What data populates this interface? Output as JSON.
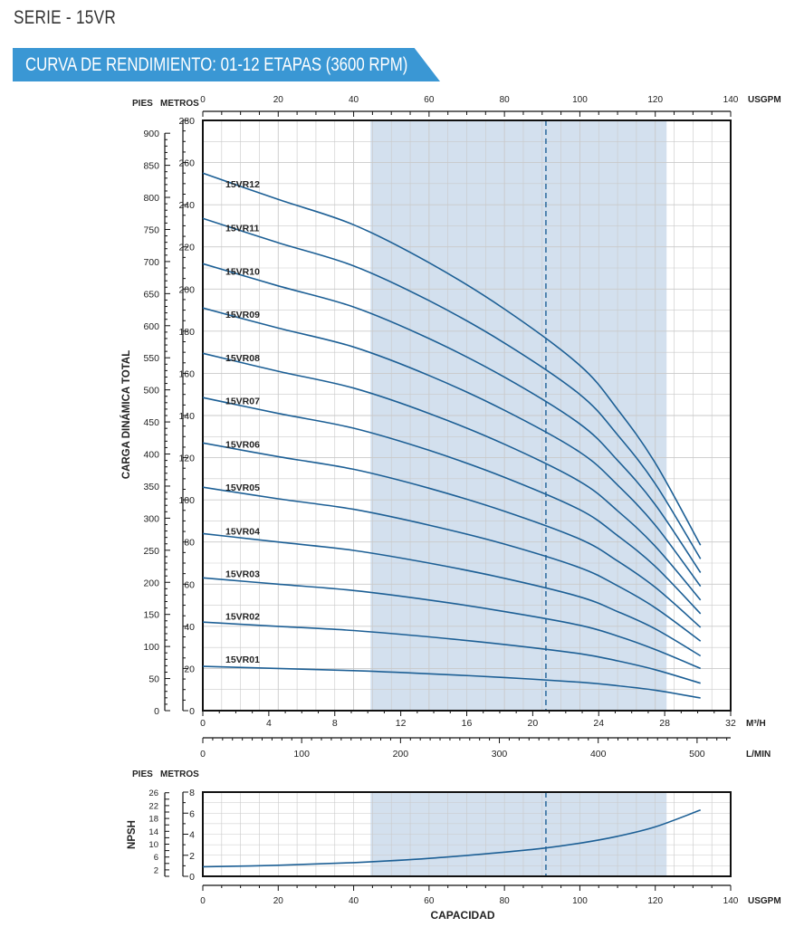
{
  "header": {
    "series": "SERIE - 15VR",
    "banner": "CURVA DE RENDIMIENTO: 01-12 ETAPAS (3600 RPM)"
  },
  "colors": {
    "banner": "#3a97d4",
    "curve": "#1c5f95",
    "shade": "#d3e0ee",
    "grid": "#c9c9c9"
  },
  "chart_data": [
    {
      "type": "line",
      "name": "performance",
      "ylabel": "CARGA DINÁMICA TOTAL",
      "unit_labels": {
        "pies": "PIES",
        "metros": "METROS",
        "usgpm": "USGPM",
        "m3h": "M³/H",
        "lmin": "L/MIN"
      },
      "x_usgpm": {
        "range": [
          0,
          140
        ],
        "ticks": [
          0,
          20,
          40,
          60,
          80,
          100,
          120,
          140
        ]
      },
      "x_m3h": {
        "range": [
          0,
          32
        ],
        "ticks": [
          0,
          4,
          8,
          12,
          16,
          20,
          24,
          28,
          32
        ]
      },
      "x_lmin": {
        "range": [
          0,
          534
        ],
        "ticks": [
          0,
          100,
          200,
          300,
          400,
          500
        ]
      },
      "y_metros": {
        "range": [
          0,
          280
        ],
        "ticks": [
          0,
          20,
          40,
          60,
          80,
          100,
          120,
          140,
          160,
          180,
          200,
          220,
          240,
          260,
          280
        ]
      },
      "y_pies": {
        "range": [
          0,
          920
        ],
        "ticks": [
          0,
          50,
          100,
          150,
          200,
          250,
          300,
          350,
          400,
          450,
          500,
          550,
          600,
          650,
          700,
          750,
          800,
          850,
          900
        ]
      },
      "shaded_range_usgpm": [
        44.5,
        123
      ],
      "best_efficiency_usgpm": 91,
      "x": [
        0,
        20,
        40,
        60,
        80,
        100,
        110,
        120,
        132
      ],
      "series": [
        {
          "name": "15VR01",
          "values": [
            21,
            20,
            19,
            17.5,
            15.7,
            13.5,
            11.8,
            9.7,
            6
          ]
        },
        {
          "name": "15VR02",
          "values": [
            42,
            40,
            38,
            35,
            31.4,
            27,
            23.6,
            19.4,
            13
          ]
        },
        {
          "name": "15VR03",
          "values": [
            63,
            60,
            57,
            52.5,
            47,
            40.5,
            35.4,
            29,
            20
          ]
        },
        {
          "name": "15VR04",
          "values": [
            84,
            80,
            76,
            70,
            62.8,
            54,
            47,
            38.8,
            26
          ]
        },
        {
          "name": "15VR05",
          "values": [
            106,
            100.5,
            95.5,
            88,
            79,
            67.8,
            59.2,
            48.8,
            33
          ]
        },
        {
          "name": "15VR06",
          "values": [
            127,
            120.5,
            114.5,
            105.5,
            94.6,
            81.4,
            71,
            58.5,
            39.5
          ]
        },
        {
          "name": "15VR07",
          "values": [
            148.5,
            141,
            134,
            123.5,
            110.7,
            95.3,
            83,
            68.4,
            46
          ]
        },
        {
          "name": "15VR08",
          "values": [
            169.5,
            161,
            153,
            141,
            126.4,
            108.7,
            94.8,
            78,
            52.5
          ]
        },
        {
          "name": "15VR09",
          "values": [
            191,
            181.5,
            172.5,
            159,
            142.5,
            122.6,
            107,
            88,
            59
          ]
        },
        {
          "name": "15VR10",
          "values": [
            212,
            201.5,
            191.5,
            176.5,
            158.2,
            136,
            118.7,
            97.7,
            65.5
          ]
        },
        {
          "name": "15VR11",
          "values": [
            233.5,
            222,
            211,
            194.5,
            174.4,
            150,
            130.8,
            107.6,
            72
          ]
        },
        {
          "name": "15VR12",
          "values": [
            255,
            242.5,
            230.5,
            212.5,
            190.5,
            163.8,
            142.9,
            117.5,
            78.5
          ]
        }
      ]
    },
    {
      "type": "line",
      "name": "npsh",
      "ylabel": "NPSH",
      "xlabel": "CAPACIDAD",
      "unit_labels": {
        "pies": "PIES",
        "metros": "METROS",
        "usgpm": "USGPM"
      },
      "x_usgpm": {
        "range": [
          0,
          140
        ],
        "ticks": [
          0,
          20,
          40,
          60,
          80,
          100,
          120,
          140
        ]
      },
      "y_metros": {
        "range": [
          0,
          8
        ],
        "ticks": [
          0,
          2,
          4,
          6,
          8
        ]
      },
      "y_pies": {
        "range": [
          0,
          26.2
        ],
        "ticks": [
          2,
          6,
          10,
          14,
          18,
          22,
          26
        ]
      },
      "shaded_range_usgpm": [
        44.5,
        123
      ],
      "best_efficiency_usgpm": 91,
      "x": [
        0,
        20,
        40,
        60,
        80,
        90,
        100,
        110,
        120,
        132
      ],
      "series": [
        {
          "name": "NPSH",
          "values": [
            0.9,
            1.05,
            1.3,
            1.7,
            2.3,
            2.65,
            3.15,
            3.8,
            4.7,
            6.3
          ]
        }
      ]
    }
  ]
}
